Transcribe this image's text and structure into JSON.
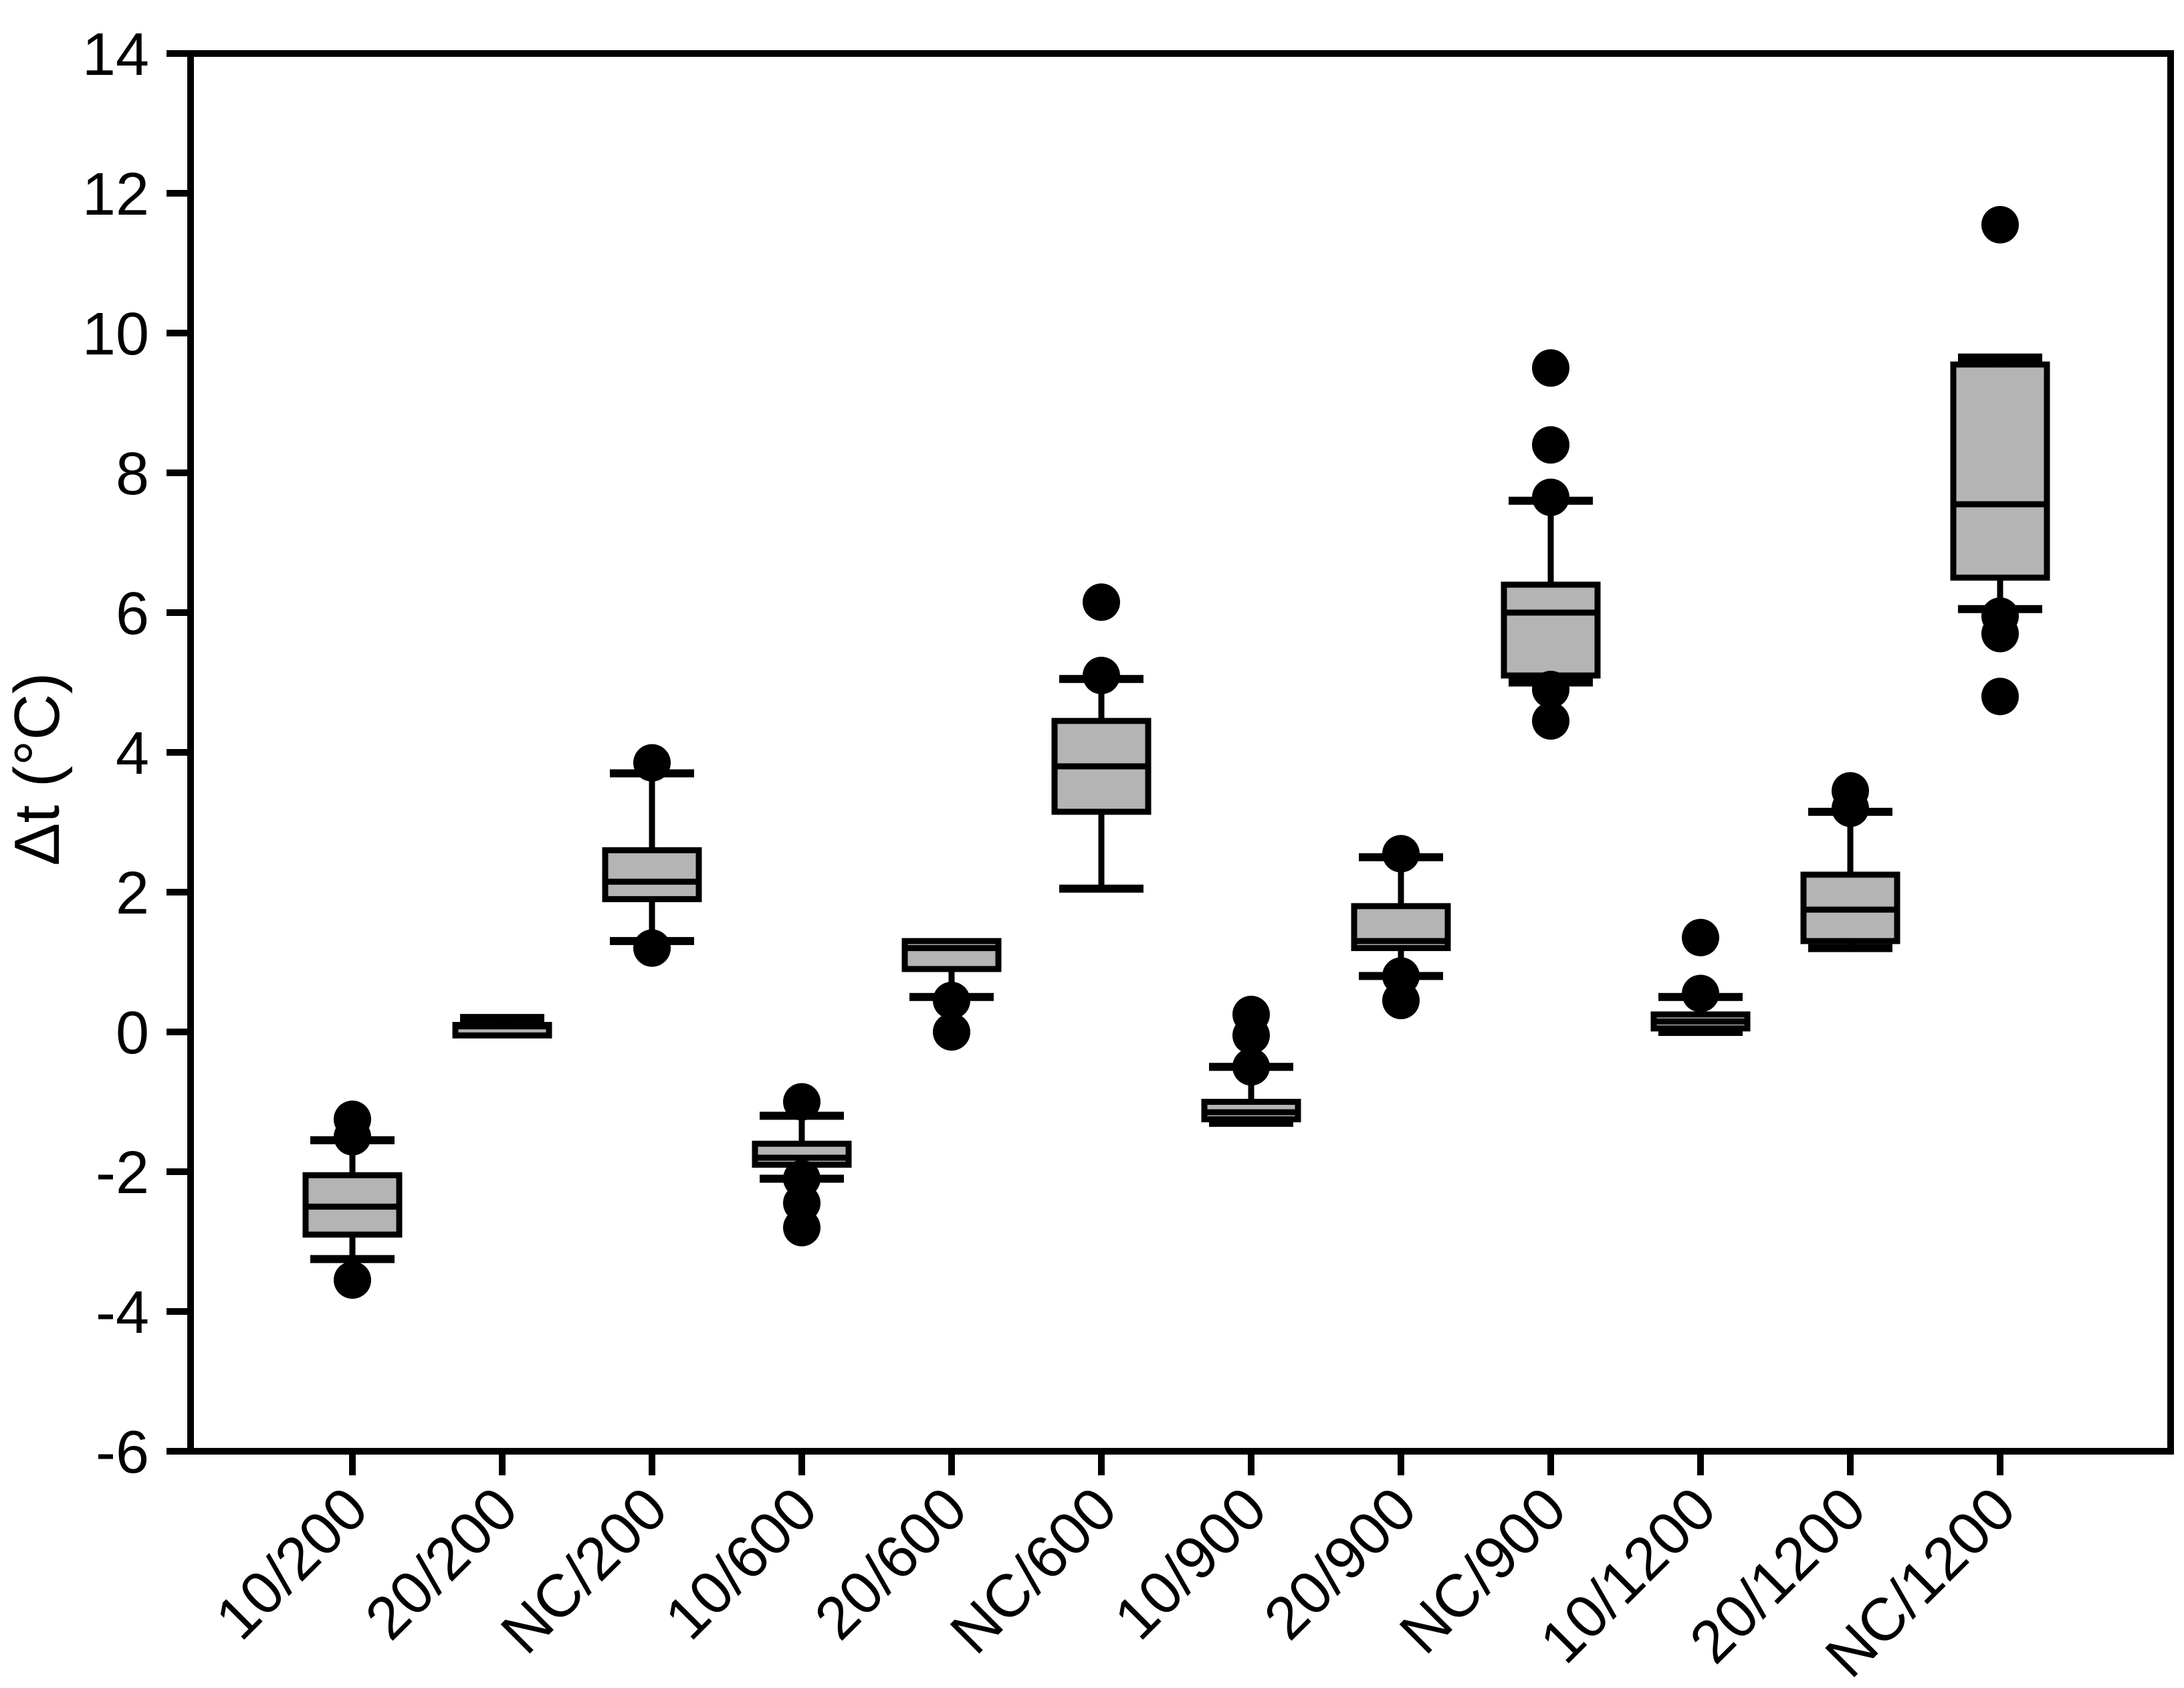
{
  "chart_data": {
    "type": "box",
    "title": "",
    "xlabel": "",
    "ylabel": "Δt (°C)",
    "ylim": [
      -6,
      14
    ],
    "yticks": [
      -6,
      -4,
      -2,
      0,
      2,
      4,
      6,
      8,
      10,
      12,
      14
    ],
    "grid": false,
    "legend": "none",
    "categories": [
      "10/200",
      "20/200",
      "NC/200",
      "10/600",
      "20/600",
      "NC/600",
      "10/900",
      "20/900",
      "NC/900",
      "10/1200",
      "20/1200",
      "NC/1200"
    ],
    "boxes": [
      {
        "category": "10/200",
        "whisker_low": -3.25,
        "q1": -2.9,
        "median": -2.5,
        "q3": -2.05,
        "whisker_high": -1.55,
        "outliers": [
          -1.25,
          -1.5,
          -3.55
        ]
      },
      {
        "category": "20/200",
        "whisker_low": -0.05,
        "q1": -0.05,
        "median": 0.08,
        "q3": 0.1,
        "whisker_high": 0.2,
        "outliers": []
      },
      {
        "category": "NC/200",
        "whisker_low": 1.3,
        "q1": 1.9,
        "median": 2.15,
        "q3": 2.6,
        "whisker_high": 3.7,
        "outliers": [
          3.85,
          1.2
        ]
      },
      {
        "category": "10/600",
        "whisker_low": -2.1,
        "q1": -1.9,
        "median": -1.8,
        "q3": -1.6,
        "whisker_high": -1.2,
        "outliers": [
          -1.0,
          -2.1,
          -2.45,
          -2.8
        ]
      },
      {
        "category": "20/600",
        "whisker_low": 0.5,
        "q1": 0.9,
        "median": 1.2,
        "q3": 1.3,
        "whisker_high": 1.3,
        "outliers": [
          0.45,
          0.0
        ]
      },
      {
        "category": "NC/600",
        "whisker_low": 2.05,
        "q1": 3.15,
        "median": 3.8,
        "q3": 4.45,
        "whisker_high": 5.05,
        "outliers": [
          6.15,
          5.1
        ]
      },
      {
        "category": "10/900",
        "whisker_low": -1.3,
        "q1": -1.25,
        "median": -1.15,
        "q3": -1.0,
        "whisker_high": -0.5,
        "outliers": [
          0.25,
          -0.05,
          -0.5
        ]
      },
      {
        "category": "20/900",
        "whisker_low": 0.8,
        "q1": 1.2,
        "median": 1.3,
        "q3": 1.8,
        "whisker_high": 2.5,
        "outliers": [
          2.55,
          0.8,
          0.45
        ]
      },
      {
        "category": "NC/900",
        "whisker_low": 5.0,
        "q1": 5.1,
        "median": 6.0,
        "q3": 6.4,
        "whisker_high": 7.6,
        "outliers": [
          9.5,
          8.4,
          7.65,
          4.9,
          4.45
        ]
      },
      {
        "category": "10/1200",
        "whisker_low": 0.0,
        "q1": 0.05,
        "median": 0.15,
        "q3": 0.25,
        "whisker_high": 0.5,
        "outliers": [
          1.35,
          0.55
        ]
      },
      {
        "category": "20/1200",
        "whisker_low": 1.2,
        "q1": 1.3,
        "median": 1.75,
        "q3": 2.25,
        "whisker_high": 3.15,
        "outliers": [
          3.45,
          3.2
        ]
      },
      {
        "category": "NC/1200",
        "whisker_low": 6.05,
        "q1": 6.5,
        "median": 7.55,
        "q3": 9.55,
        "whisker_high": 9.65,
        "outliers": [
          11.55,
          5.95,
          5.7,
          4.8
        ]
      }
    ],
    "colors": {
      "box_fill": "#b4b4b4",
      "stroke": "#000000",
      "outlier_fill": "#000000",
      "background": "#ffffff"
    }
  }
}
